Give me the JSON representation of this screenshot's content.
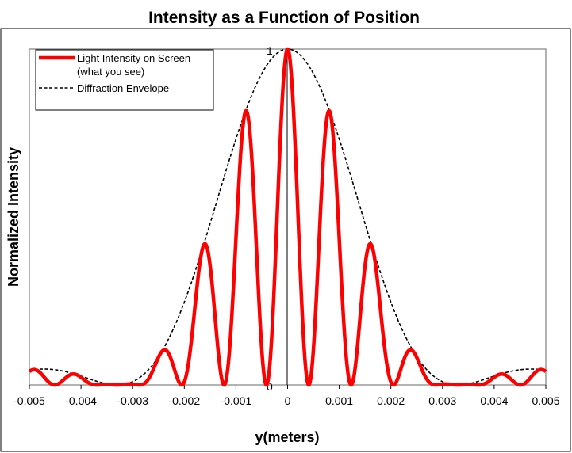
{
  "chart_data": {
    "type": "line",
    "title": "Intensity as a Function of Position",
    "xlabel": "y(meters)",
    "ylabel": "Normalized Intensity",
    "xlim": [
      -0.005,
      0.005
    ],
    "ylim": [
      0,
      1
    ],
    "x_ticks": [
      "-0.005",
      "-0.004",
      "-0.003",
      "-0.002",
      "-0.001",
      "0",
      "0.001",
      "0.002",
      "0.003",
      "0.004",
      "0.005"
    ],
    "y_ticks": [
      "0",
      "1"
    ],
    "grid": false,
    "legend_position": "top-left",
    "series": [
      {
        "name": "Light Intensity on Screen",
        "name_line2": "(what you see)",
        "style": "solid",
        "color": "#ff0000",
        "peaks": [
          {
            "x": 0.0,
            "y": 1.0
          },
          {
            "x": 0.00082,
            "y": 0.81
          },
          {
            "x": -0.00082,
            "y": 0.81
          },
          {
            "x": 0.00164,
            "y": 0.41
          },
          {
            "x": -0.00164,
            "y": 0.41
          },
          {
            "x": 0.00245,
            "y": 0.1
          },
          {
            "x": -0.00245,
            "y": 0.1
          },
          {
            "x": 0.00425,
            "y": 0.04
          },
          {
            "x": -0.00425,
            "y": 0.04
          }
        ]
      },
      {
        "name": "Diffraction Envelope",
        "style": "dashed",
        "color": "#000000"
      }
    ],
    "model": {
      "envelope_zero": 0.0033,
      "fringe_spacing": 0.00082
    }
  }
}
